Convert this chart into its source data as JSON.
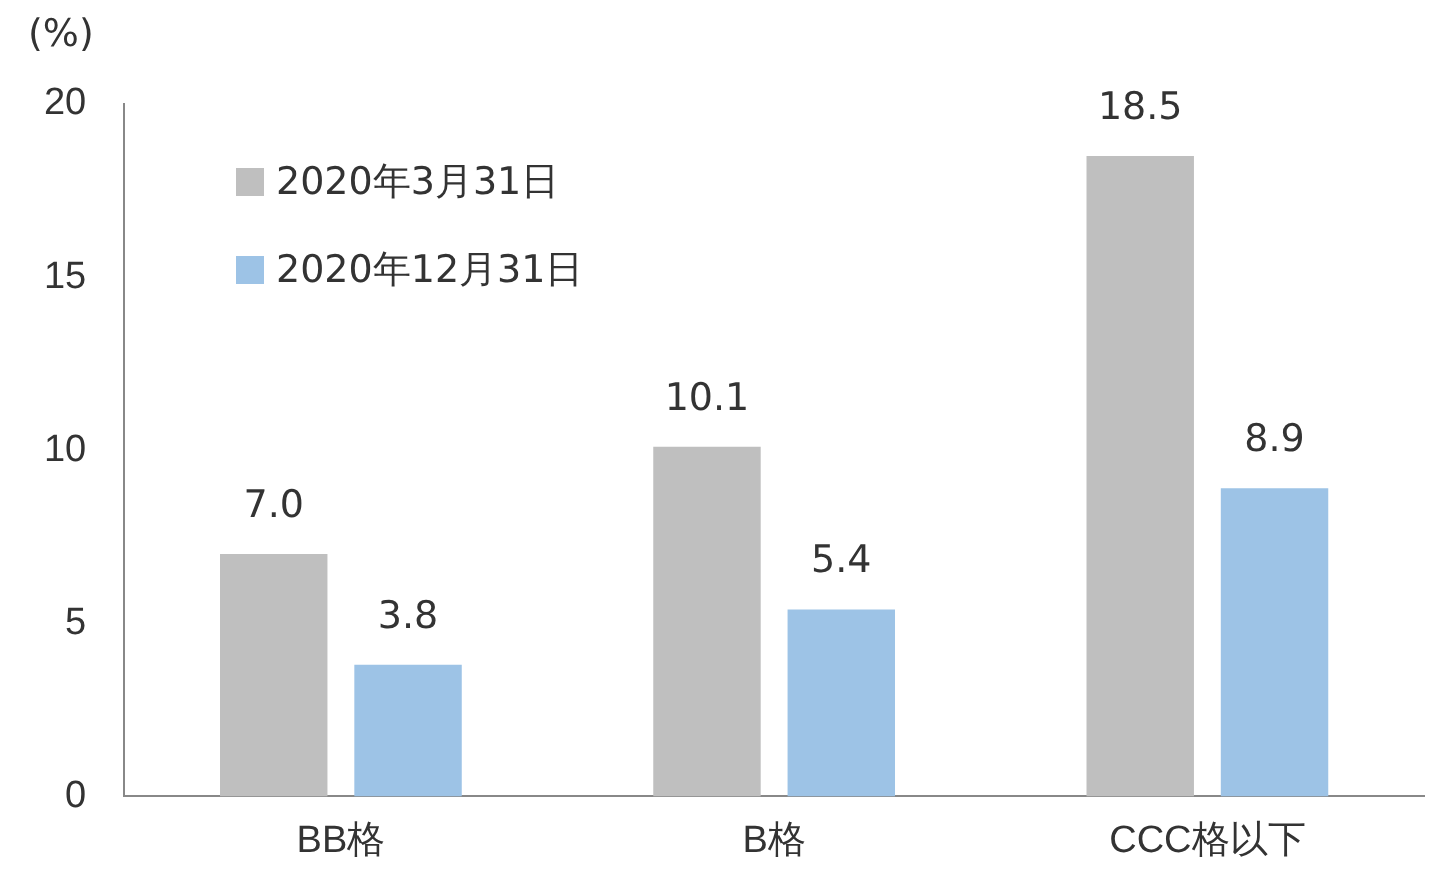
{
  "chart_data": {
    "type": "bar",
    "ylabel": "(%)",
    "categories": [
      "BB格",
      "B格",
      "CCC格以下"
    ],
    "series": [
      {
        "name": "2020年3月31日",
        "color": "#bfbfbf",
        "values": [
          7.0,
          10.1,
          18.5
        ],
        "value_labels": [
          "7.0",
          "10.1",
          "18.5"
        ]
      },
      {
        "name": "2020年12月31日",
        "color": "#9dc3e6",
        "values": [
          3.8,
          5.4,
          8.9
        ],
        "value_labels": [
          "3.8",
          "5.4",
          "8.9"
        ]
      }
    ],
    "ylim": [
      0,
      20
    ],
    "yticks": [
      0,
      5,
      10,
      15,
      20
    ],
    "grid": false,
    "legend": "top left"
  }
}
